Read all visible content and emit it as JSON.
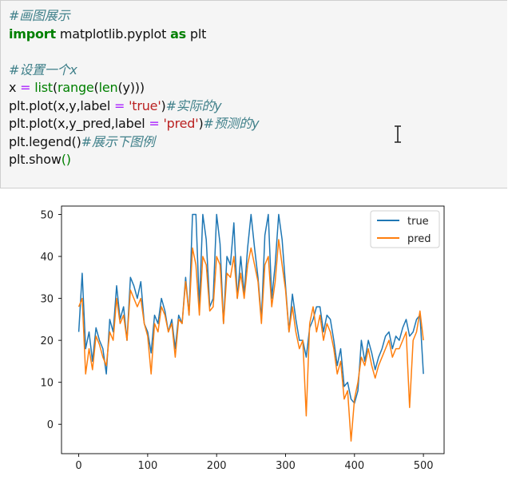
{
  "code_cell": {
    "lines": [
      [
        {
          "t": "#画图展示",
          "c": "cm"
        }
      ],
      [
        {
          "t": "import",
          "c": "kw"
        },
        {
          "t": " matplotlib.pyplot ",
          "c": ""
        },
        {
          "t": "as",
          "c": "kw"
        },
        {
          "t": " plt",
          "c": ""
        }
      ],
      [],
      [
        {
          "t": "#设置一个x",
          "c": "cm"
        }
      ],
      [
        {
          "t": "x ",
          "c": ""
        },
        {
          "t": "=",
          "c": "op"
        },
        {
          "t": " ",
          "c": ""
        },
        {
          "t": "list",
          "c": "fn"
        },
        {
          "t": "(",
          "c": ""
        },
        {
          "t": "range",
          "c": "fn"
        },
        {
          "t": "(",
          "c": ""
        },
        {
          "t": "len",
          "c": "fn"
        },
        {
          "t": "(y)))",
          "c": ""
        }
      ],
      [
        {
          "t": "plt.plot(x,y,label ",
          "c": ""
        },
        {
          "t": "=",
          "c": "op"
        },
        {
          "t": " ",
          "c": ""
        },
        {
          "t": "'true'",
          "c": "st"
        },
        {
          "t": ")",
          "c": ""
        },
        {
          "t": "#实际的y",
          "c": "cm"
        }
      ],
      [
        {
          "t": "plt.plot(x,y_pred,label ",
          "c": ""
        },
        {
          "t": "=",
          "c": "op"
        },
        {
          "t": " ",
          "c": ""
        },
        {
          "t": "'pred'",
          "c": "st"
        },
        {
          "t": ")",
          "c": ""
        },
        {
          "t": "#预测的y",
          "c": "cm"
        }
      ],
      [
        {
          "t": "plt.legend()",
          "c": ""
        },
        {
          "t": "#展示下图例",
          "c": "cm"
        }
      ],
      [
        {
          "t": "plt.show",
          "c": ""
        },
        {
          "t": "()",
          "c": "fn"
        }
      ]
    ]
  },
  "chart_data": {
    "type": "line",
    "title": "",
    "xlabel": "",
    "ylabel": "",
    "xlim": [
      -25,
      530
    ],
    "ylim": [
      -7,
      52
    ],
    "xticks": [
      0,
      100,
      200,
      300,
      400,
      500
    ],
    "yticks": [
      0,
      10,
      20,
      30,
      40,
      50
    ],
    "grid": false,
    "legend_position": "top-right",
    "x_step": 5,
    "series": [
      {
        "name": "true",
        "color": "#1f77b4",
        "values": [
          22,
          36,
          18,
          22,
          15,
          23,
          20,
          18,
          12,
          25,
          22,
          33,
          25,
          28,
          20,
          35,
          33,
          30,
          34,
          24,
          22,
          17,
          26,
          24,
          30,
          27,
          22,
          25,
          18,
          26,
          24,
          35,
          26,
          50,
          50,
          28,
          50,
          44,
          28,
          30,
          50,
          43,
          24,
          40,
          38,
          48,
          30,
          40,
          31,
          42,
          50,
          42,
          35,
          25,
          45,
          50,
          30,
          38,
          50,
          44,
          33,
          22,
          31,
          25,
          20,
          20,
          16,
          23,
          25,
          28,
          28,
          22,
          26,
          25,
          20,
          14,
          18,
          9,
          10,
          6,
          5,
          8,
          20,
          15,
          20,
          17,
          13,
          16,
          18,
          21,
          22,
          18,
          21,
          20,
          23,
          25,
          21,
          22,
          25,
          26,
          12
        ]
      },
      {
        "name": "pred",
        "color": "#ff7f0e",
        "values": [
          28,
          30,
          12,
          18,
          13,
          21,
          19,
          16,
          14,
          22,
          20,
          30,
          24,
          26,
          20,
          32,
          30,
          28,
          30,
          24,
          21,
          12,
          24,
          22,
          28,
          26,
          22,
          24,
          16,
          25,
          24,
          34,
          26,
          42,
          38,
          26,
          40,
          38,
          27,
          28,
          40,
          38,
          24,
          36,
          35,
          40,
          30,
          36,
          30,
          38,
          42,
          38,
          34,
          24,
          38,
          40,
          28,
          34,
          44,
          38,
          32,
          22,
          28,
          22,
          18,
          20,
          2,
          24,
          28,
          22,
          26,
          20,
          24,
          22,
          18,
          12,
          15,
          6,
          8,
          -4,
          6,
          10,
          16,
          14,
          18,
          14,
          11,
          14,
          16,
          18,
          20,
          16,
          18,
          18,
          20,
          22,
          4,
          20,
          22,
          27,
          20
        ]
      }
    ]
  }
}
